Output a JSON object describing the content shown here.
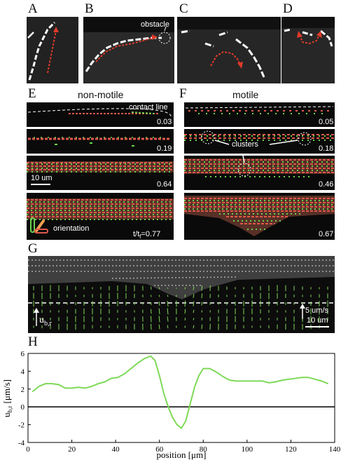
{
  "panels": {
    "A": "A",
    "B": "B",
    "C": "C",
    "D": "D",
    "E": "E",
    "F": "F",
    "G": "G",
    "H": "H"
  },
  "top_row": {
    "obstacle_label": "obstacle"
  },
  "panel_E": {
    "title": "non-motile",
    "contact_line_label": "contact line",
    "times": [
      "0.03",
      "0.19",
      "0.64"
    ],
    "last_time": "t/t",
    "last_time_sub": "f",
    "last_time_value": "=0.77",
    "scalebar": "10 um",
    "orientation_label": "orientation"
  },
  "panel_F": {
    "title": "motile",
    "times": [
      "0.05",
      "0.18",
      "0.46",
      "0.67"
    ],
    "clusters_label": "clusters"
  },
  "panel_G": {
    "vector_label": "u",
    "vector_sub": "b,r",
    "speed_scale": "5 um/s",
    "length_scale": "10 um"
  },
  "chart_data": {
    "type": "line",
    "xlabel": "position [μm]",
    "ylabel": "u",
    "ylabel_sub": "b,r",
    "ylabel_unit": " [μm/s]",
    "xlim": [
      0,
      140
    ],
    "ylim": [
      -4,
      6
    ],
    "xticks": [
      0,
      20,
      40,
      60,
      80,
      100,
      120,
      140
    ],
    "yticks": [
      -4,
      -2,
      0,
      2,
      4,
      6
    ],
    "zero_line": true,
    "line_color": "#7ed957",
    "x": [
      2,
      5,
      8,
      11,
      14,
      17,
      20,
      23,
      26,
      29,
      32,
      35,
      38,
      41,
      44,
      47,
      50,
      53,
      56,
      58,
      60,
      62,
      64,
      66,
      68,
      70,
      72,
      74,
      76,
      78,
      80,
      83,
      86,
      89,
      92,
      95,
      98,
      101,
      104,
      107,
      110,
      113,
      116,
      119,
      122,
      125,
      128,
      131,
      134,
      137
    ],
    "y": [
      1.7,
      2.3,
      2.6,
      2.6,
      2.5,
      2.1,
      2.1,
      2.2,
      2.1,
      2.3,
      2.6,
      2.8,
      3.2,
      3.3,
      3.7,
      4.3,
      4.9,
      5.4,
      5.7,
      5.2,
      3.5,
      1.5,
      0.0,
      -1.2,
      -2.0,
      -2.4,
      -1.6,
      0.3,
      2.2,
      3.5,
      4.3,
      4.3,
      3.9,
      3.4,
      3.0,
      2.9,
      2.9,
      2.9,
      2.9,
      2.9,
      2.7,
      2.8,
      3.0,
      3.1,
      3.2,
      3.3,
      3.3,
      3.1,
      2.9,
      2.6
    ]
  }
}
